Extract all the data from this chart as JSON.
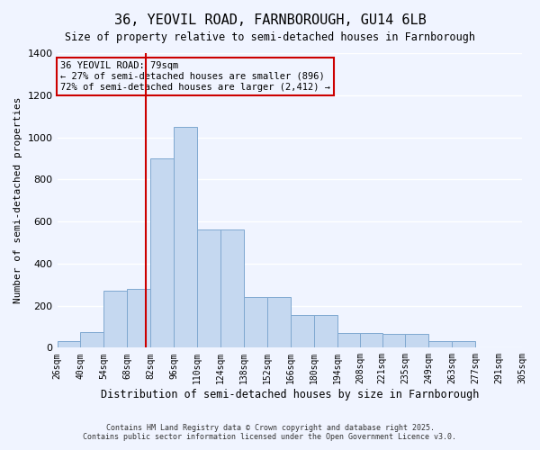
{
  "title": "36, YEOVIL ROAD, FARNBOROUGH, GU14 6LB",
  "subtitle": "Size of property relative to semi-detached houses in Farnborough",
  "xlabel": "Distribution of semi-detached houses by size in Farnborough",
  "ylabel": "Number of semi-detached properties",
  "footer1": "Contains HM Land Registry data © Crown copyright and database right 2025.",
  "footer2": "Contains public sector information licensed under the Open Government Licence v3.0.",
  "property_size": 79,
  "annotation_title": "36 YEOVIL ROAD: 79sqm",
  "annotation_line1": "← 27% of semi-detached houses are smaller (896)",
  "annotation_line2": "72% of semi-detached houses are larger (2,412) →",
  "bin_labels": [
    "26sqm",
    "40sqm",
    "54sqm",
    "68sqm",
    "82sqm",
    "96sqm",
    "110sqm",
    "124sqm",
    "138sqm",
    "152sqm",
    "166sqm",
    "180sqm",
    "194sqm",
    "208sqm",
    "221sqm",
    "235sqm",
    "249sqm",
    "263sqm",
    "277sqm",
    "291sqm",
    "305sqm"
  ],
  "bin_edges": [
    26,
    40,
    54,
    68,
    82,
    96,
    110,
    124,
    138,
    152,
    166,
    180,
    194,
    208,
    221,
    235,
    249,
    263,
    277,
    291,
    305
  ],
  "bar_values": [
    30,
    75,
    270,
    280,
    900,
    1050,
    560,
    560,
    240,
    240,
    155,
    155,
    70,
    70,
    65,
    65,
    30,
    30,
    0,
    0,
    0
  ],
  "ylim": [
    0,
    1400
  ],
  "bar_color": "#c5d8f0",
  "bar_edge_color": "#7fa8d0",
  "vline_x": 79,
  "vline_color": "#cc0000",
  "background_color": "#f0f4ff",
  "grid_color": "#ffffff",
  "annotation_box_color": "#cc0000"
}
